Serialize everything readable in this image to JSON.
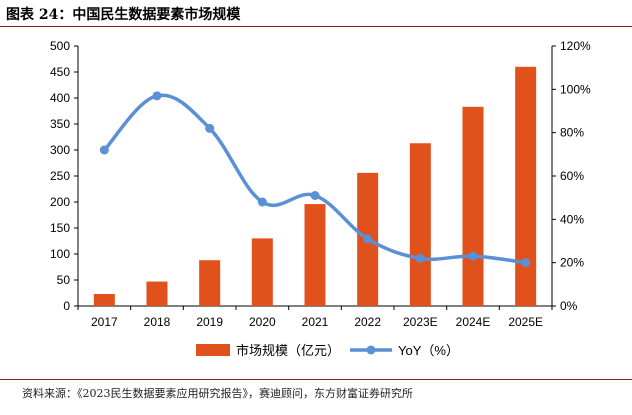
{
  "figure": {
    "title": "图表 24：中国民生数据要素市场规模",
    "source": "资料来源：《2023民生数据要素应用研究报告》，赛迪顾问，东方财富证券研究所"
  },
  "chart_data": {
    "type": "bar",
    "categories": [
      "2017",
      "2018",
      "2019",
      "2020",
      "2021",
      "2022",
      "2023E",
      "2024E",
      "2025E"
    ],
    "series": [
      {
        "name": "市场规模（亿元）",
        "type": "bar",
        "axis": "left",
        "color": "#e0511b",
        "values": [
          23,
          47,
          88,
          130,
          196,
          256,
          313,
          383,
          460
        ]
      },
      {
        "name": "YoY（%）",
        "type": "line",
        "axis": "right",
        "color": "#5b8fd6",
        "values": [
          72,
          97,
          82,
          48,
          51,
          31,
          22,
          23,
          20
        ]
      }
    ],
    "y_left": {
      "min": 0,
      "max": 500,
      "step": 50,
      "ticks": [
        "0",
        "50",
        "100",
        "150",
        "200",
        "250",
        "300",
        "350",
        "400",
        "450",
        "500"
      ]
    },
    "y_right": {
      "min": 0,
      "max": 120,
      "step": 20,
      "ticks": [
        "0%",
        "20%",
        "40%",
        "60%",
        "80%",
        "100%",
        "120%"
      ]
    },
    "grid": false,
    "legend": "bottom"
  }
}
